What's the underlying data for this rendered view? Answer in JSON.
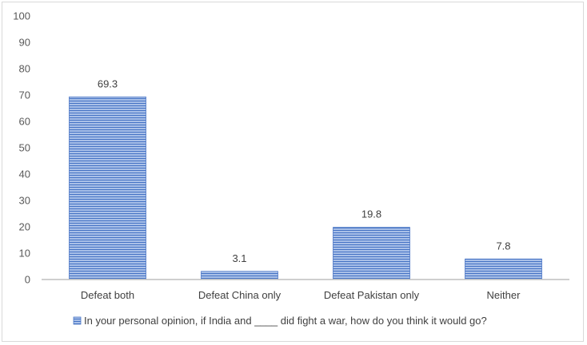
{
  "chart_data": {
    "type": "bar",
    "categories": [
      "Defeat both",
      "Defeat China only",
      "Defeat Pakistan only",
      "Neither"
    ],
    "series": [
      {
        "name": "In your personal opinion, if India and ____ did fight a war, how do you think it would go?",
        "values": [
          69.3,
          3.1,
          19.8,
          7.8
        ]
      }
    ],
    "data_labels": [
      "69.3",
      "3.1",
      "19.8",
      "7.8"
    ],
    "y_ticks": [
      "0",
      "10",
      "20",
      "30",
      "40",
      "50",
      "60",
      "70",
      "80",
      "90",
      "100"
    ],
    "ylim": [
      0,
      100
    ],
    "grid": false,
    "legend_position": "bottom",
    "colors": {
      "bar_fill": "#8eaadb",
      "bar_stripe": "#4472c4",
      "axis": "#bfbfbf"
    }
  }
}
